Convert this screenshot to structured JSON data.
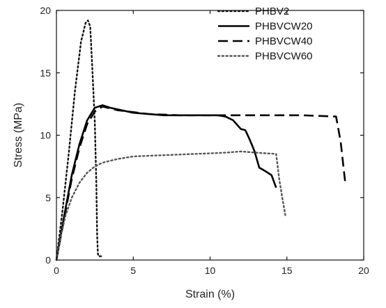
{
  "chart_data": {
    "type": "line",
    "title": "",
    "xlabel": "Strain (%)",
    "ylabel": "Stress (MPa)",
    "xlim": [
      0,
      20
    ],
    "ylim": [
      0,
      20
    ],
    "xticks": [
      0,
      5,
      10,
      15,
      20
    ],
    "yticks": [
      0,
      5,
      10,
      15,
      20
    ],
    "x_tick_labels": [
      "0",
      "5",
      "10",
      "15",
      "20"
    ],
    "y_tick_labels": [
      "0",
      "5",
      "10",
      "15",
      "20"
    ],
    "grid": false,
    "legend_position": "top-right",
    "series": [
      {
        "name": "PHBV2",
        "dash": "dotted",
        "x": [
          0,
          0.4,
          0.8,
          1.2,
          1.6,
          1.9,
          2.05,
          2.2,
          2.35,
          2.5,
          2.6,
          2.65,
          2.7,
          2.75,
          2.8,
          3.0
        ],
        "y": [
          0,
          4.0,
          8.5,
          13.5,
          17.5,
          19.0,
          19.2,
          18.7,
          15.0,
          11.0,
          6.0,
          2.0,
          0.5,
          0.3,
          0.3,
          0.3
        ]
      },
      {
        "name": "PHBVCW20",
        "dash": "solid",
        "x": [
          0,
          0.5,
          1.0,
          1.5,
          2.0,
          2.5,
          3.0,
          3.5,
          5,
          7,
          9,
          10.5,
          11.0,
          11.5,
          12.0,
          12.3,
          12.6,
          12.9,
          13.2,
          13.5,
          14.0,
          14.3
        ],
        "y": [
          0,
          3.5,
          6.8,
          9.3,
          11.2,
          12.2,
          12.4,
          12.2,
          11.8,
          11.6,
          11.6,
          11.6,
          11.5,
          11.2,
          10.5,
          10.4,
          9.6,
          8.7,
          7.4,
          7.2,
          6.8,
          5.8
        ]
      },
      {
        "name": "PHBVCW40",
        "dash": "dashed",
        "x": [
          0,
          0.5,
          1.0,
          1.5,
          2.0,
          2.5,
          3.0,
          4,
          6,
          8,
          10,
          12,
          14,
          16,
          18.2,
          18.5,
          18.8
        ],
        "y": [
          0,
          3.3,
          6.5,
          9.0,
          10.9,
          11.9,
          12.3,
          12.0,
          11.7,
          11.6,
          11.6,
          11.6,
          11.6,
          11.6,
          11.5,
          9.5,
          6.2
        ]
      },
      {
        "name": "PHBVCW60",
        "dash": "dotted",
        "x": [
          0,
          0.3,
          0.6,
          1.0,
          1.5,
          2.0,
          2.5,
          3.0,
          4.0,
          5,
          7,
          9,
          11,
          12,
          13,
          14.3,
          14.5,
          14.7,
          14.9
        ],
        "y": [
          0,
          2.0,
          3.6,
          5.0,
          6.2,
          7.0,
          7.5,
          7.8,
          8.1,
          8.3,
          8.4,
          8.5,
          8.6,
          8.7,
          8.6,
          8.5,
          6.5,
          5.0,
          3.6
        ]
      }
    ]
  }
}
